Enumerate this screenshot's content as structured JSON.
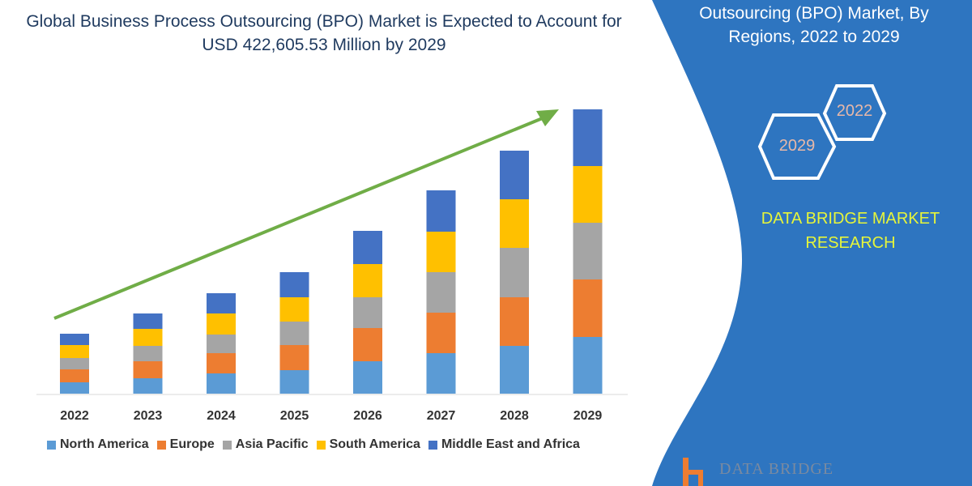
{
  "title": "Global Business Process Outsourcing (BPO) Market is Expected to Account for USD 422,605.53 Million by 2029",
  "side_panel": {
    "title": "Outsourcing (BPO) Market, By Regions, 2022 to 2029",
    "hex_labels": [
      "2022",
      "2029"
    ],
    "brand": "DATA BRIDGE MARKET RESEARCH",
    "logo_text": "DATA BRIDGE",
    "color": "#2e75c0"
  },
  "chart_data": {
    "type": "bar",
    "stacked": true,
    "categories": [
      "2022",
      "2023",
      "2024",
      "2025",
      "2026",
      "2027",
      "2028",
      "2029"
    ],
    "series": [
      {
        "name": "North America",
        "color": "#5b9bd5",
        "values": [
          14,
          19,
          25,
          29,
          40,
          50,
          59,
          70
        ]
      },
      {
        "name": "Europe",
        "color": "#ed7d31",
        "values": [
          16,
          21,
          25,
          31,
          41,
          50,
          60,
          71
        ]
      },
      {
        "name": "Asia Pacific",
        "color": "#a5a5a5",
        "values": [
          14,
          19,
          23,
          29,
          38,
          50,
          61,
          70
        ]
      },
      {
        "name": "South America",
        "color": "#ffc000",
        "values": [
          16,
          21,
          26,
          30,
          41,
          50,
          60,
          70
        ]
      },
      {
        "name": "Middle East and Africa",
        "color": "#4472c4",
        "values": [
          14,
          19,
          25,
          31,
          41,
          51,
          60,
          70
        ]
      }
    ],
    "y_axis_shown": false,
    "grid": false,
    "legend": "bottom",
    "trend_arrow_color": "#70ad47"
  }
}
